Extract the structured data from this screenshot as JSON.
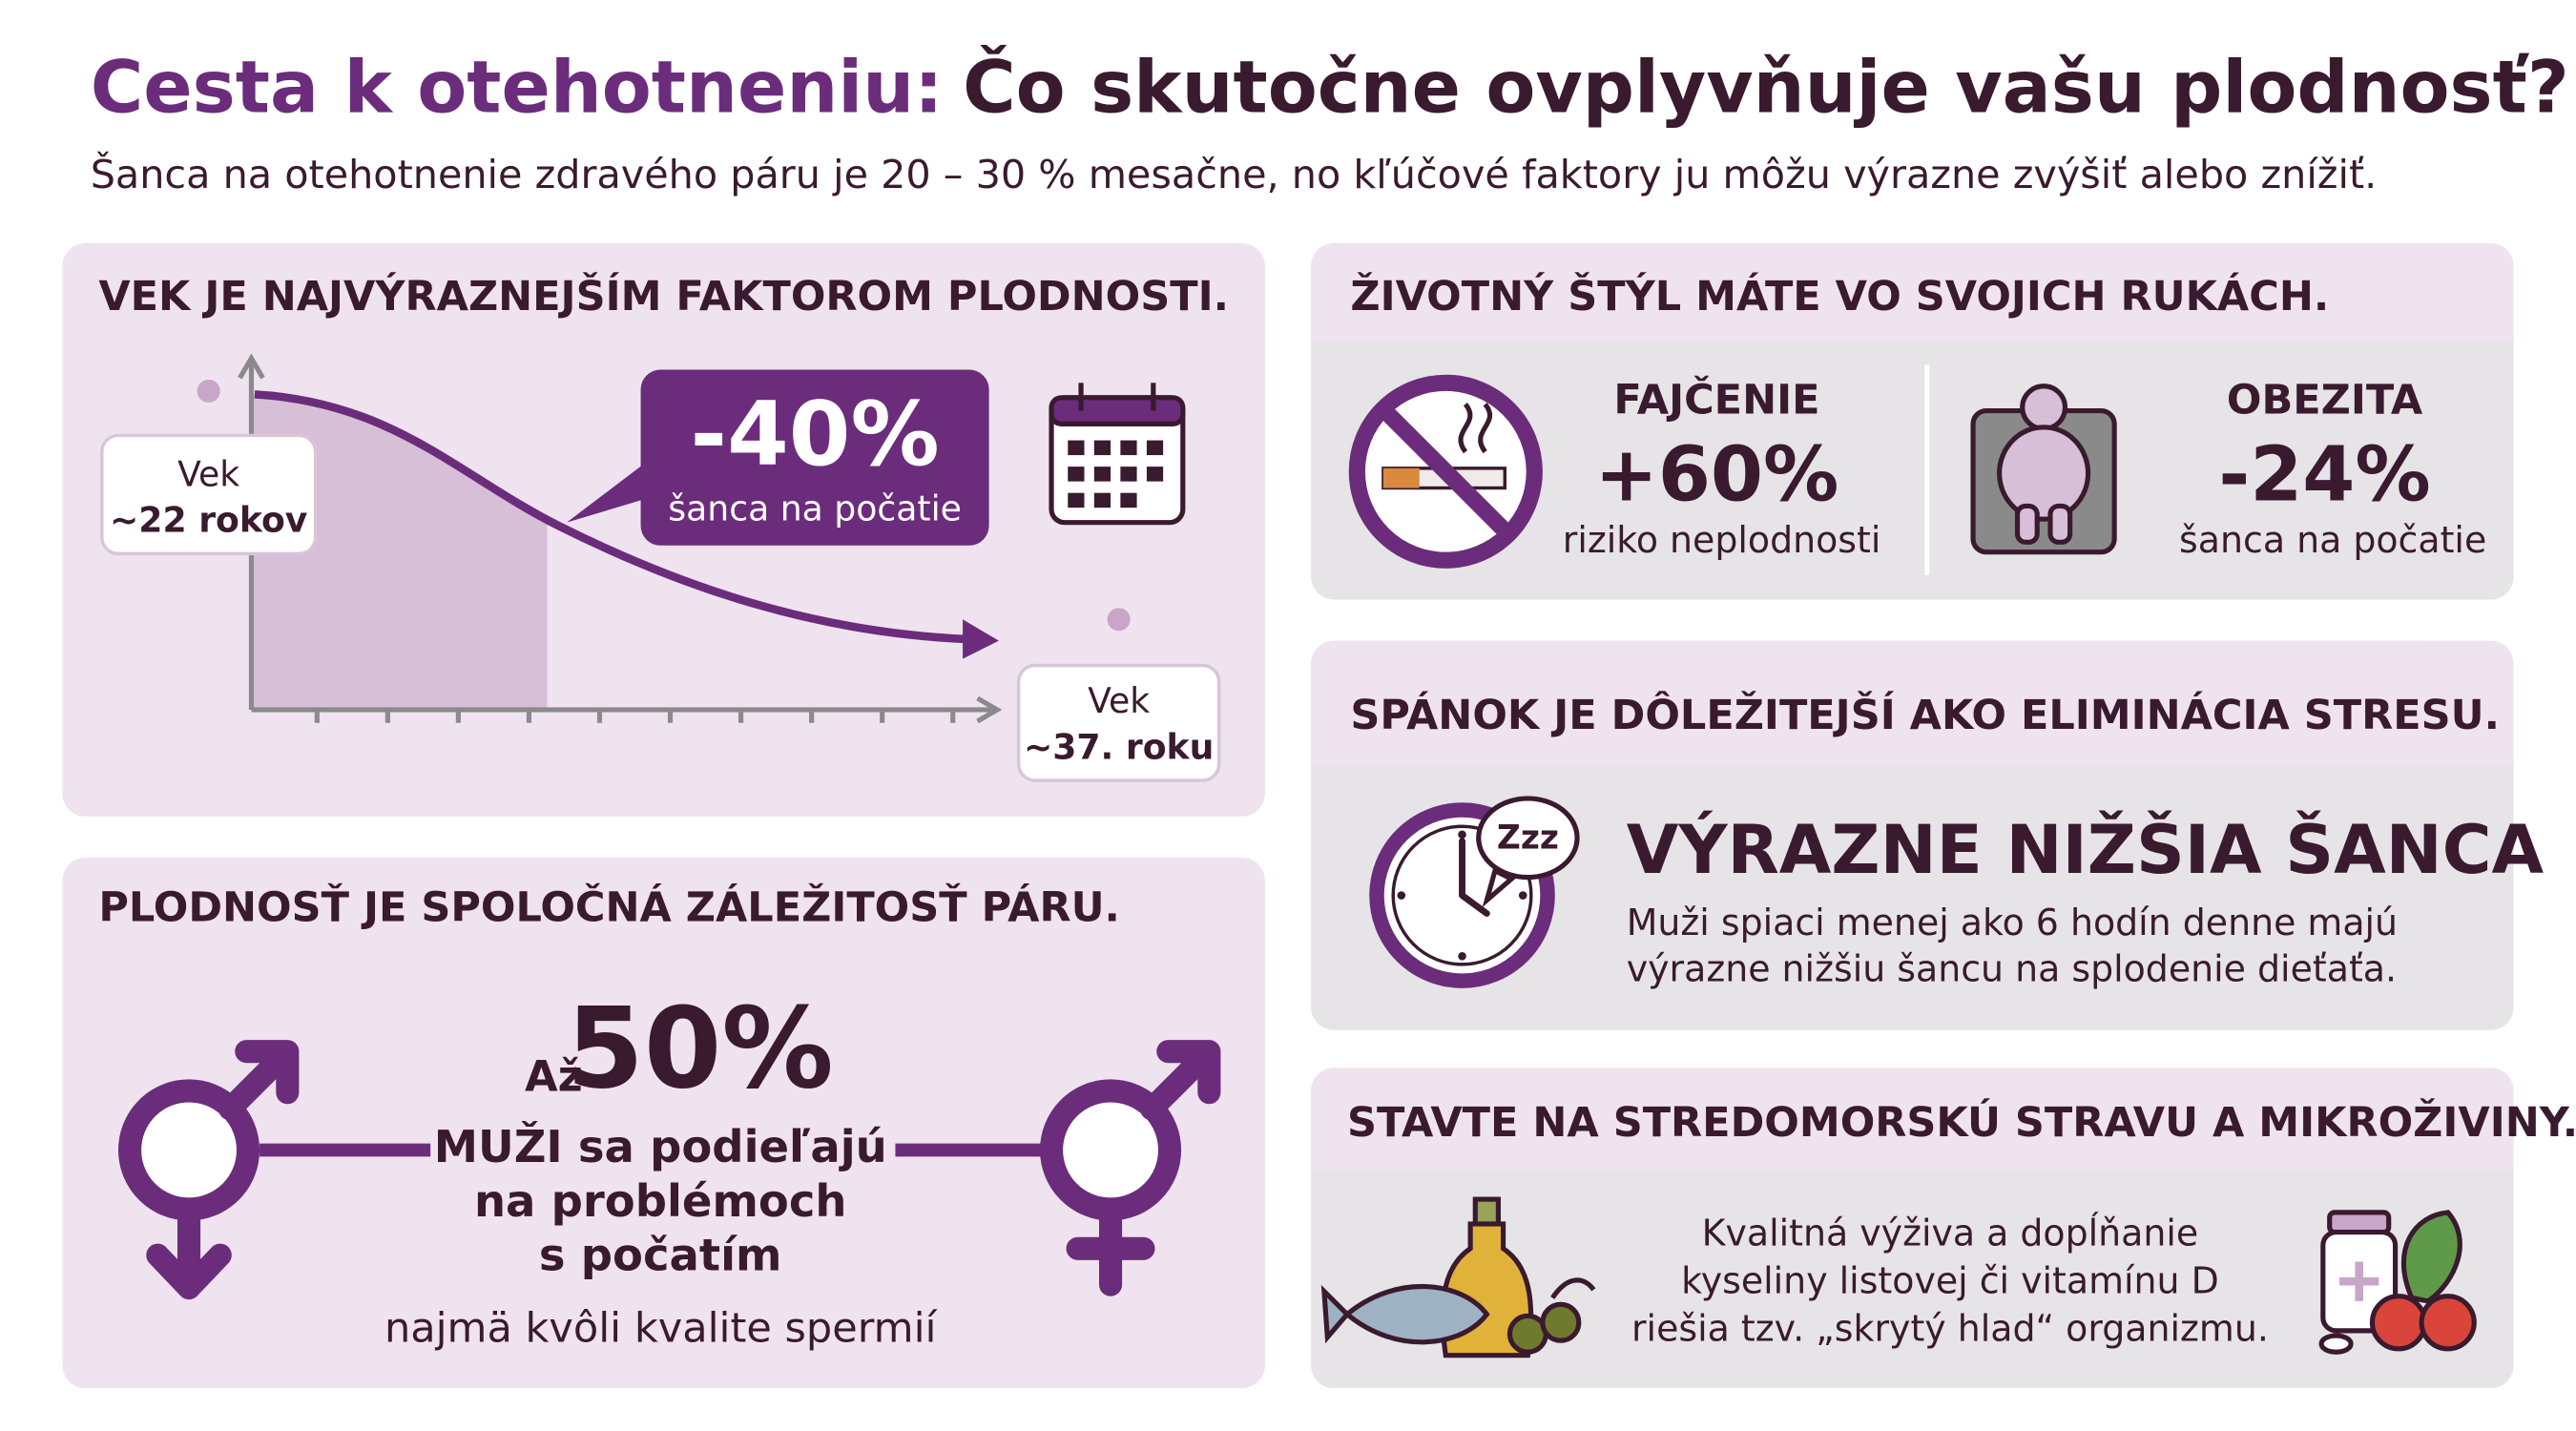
{
  "header": {
    "title_accent": "Cesta k otehotneniu:",
    "title_rest": "Čo skutočne ovplyvňuje vašu plodnosť?",
    "subtitle": "Šanca na otehotnenie zdravého páru je 20 – 30 % mesačne, no kľúčové faktory ju môžu výrazne zvýšiť alebo znížiť."
  },
  "age": {
    "heading": "VEK JE NAJVÝRAZNEJŠÍM FAKTOROM PLODNOSTI.",
    "start_label": [
      "Vek",
      "~22 rokov"
    ],
    "end_label": [
      "Vek",
      "~37. roku"
    ],
    "callout_value": "-40%",
    "callout_text": "šanca na počatie"
  },
  "couple": {
    "heading": "PLODNOSŤ JE SPOLOČNÁ ZÁLEŽITOSŤ PÁRU.",
    "prefix": "Až",
    "value": "50%",
    "lines": [
      "MUŽI sa podieľajú",
      "na problémoch",
      "s počatím"
    ],
    "note": "najmä kvôli kvalite spermií"
  },
  "lifestyle": {
    "heading": "ŽIVOTNÝ ŠTÝL MÁTE VO SVOJICH RUKÁCH.",
    "smoking": {
      "title": "FAJČENIE",
      "value": "+60%",
      "text": "riziko neplodnosti"
    },
    "obesity": {
      "title": "OBEZITA",
      "value": "-24%",
      "text": "šanca na počatie"
    }
  },
  "sleep": {
    "heading": "SPÁNOK JE DÔLEŽITEJŠÍ AKO ELIMINÁCIA STRESU.",
    "icon_text": "Zzz",
    "title": "VÝRAZNE NIŽŠIA ŠANCA",
    "lines": [
      "Muži spiaci menej ako 6 hodín denne majú",
      "výrazne nižšiu šancu na splodenie dieťaťa."
    ]
  },
  "diet": {
    "heading": "STAVTE NA STREDOMORSKÚ STRAVU A MIKROŽIVINY.",
    "lines": [
      "Kvalitná výživa a dopĺňanie",
      "kyseliny listovej či vitamínu D",
      "riešia tzv. „skrytý hlad“ organizmu."
    ]
  }
}
